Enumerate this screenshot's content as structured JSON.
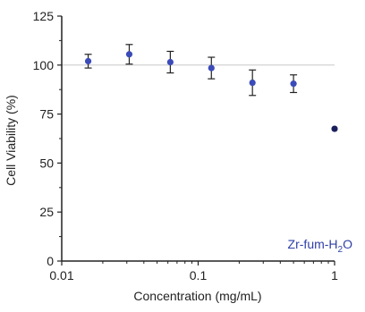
{
  "chart_data": {
    "type": "scatter",
    "title": "",
    "xlabel": "Concentration (mg/mL)",
    "ylabel": "Cell Viability (%)",
    "xscale": "log",
    "xlim": [
      0.01,
      1
    ],
    "ylim": [
      0,
      125
    ],
    "xticks": [
      0.01,
      0.1,
      1
    ],
    "xtick_labels": [
      "0.01",
      "0.1",
      "1"
    ],
    "yticks": [
      0,
      25,
      50,
      75,
      100,
      125
    ],
    "ytick_labels": [
      "0",
      "25",
      "50",
      "75",
      "100",
      "125"
    ],
    "reference_line": 100,
    "grid": false,
    "legend_placement": "bottom-right",
    "annotation": {
      "prefix": "Zr-fum-H",
      "subscript": "2",
      "suffix": "O",
      "color": "#2f3fa6"
    },
    "series": [
      {
        "name": "Zr-fum-H2O",
        "color": "#3b4bb8",
        "x": [
          0.015625,
          0.03125,
          0.0625,
          0.125,
          0.25,
          0.5
        ],
        "y": [
          102,
          105.5,
          101.5,
          98.5,
          91,
          90.5
        ],
        "yerr": [
          3.5,
          5,
          5.5,
          5.5,
          6.5,
          4.5
        ]
      },
      {
        "name": "",
        "color": "#1a1f5c",
        "x": [
          1
        ],
        "y": [
          67.5
        ],
        "yerr": [
          0
        ]
      }
    ]
  }
}
